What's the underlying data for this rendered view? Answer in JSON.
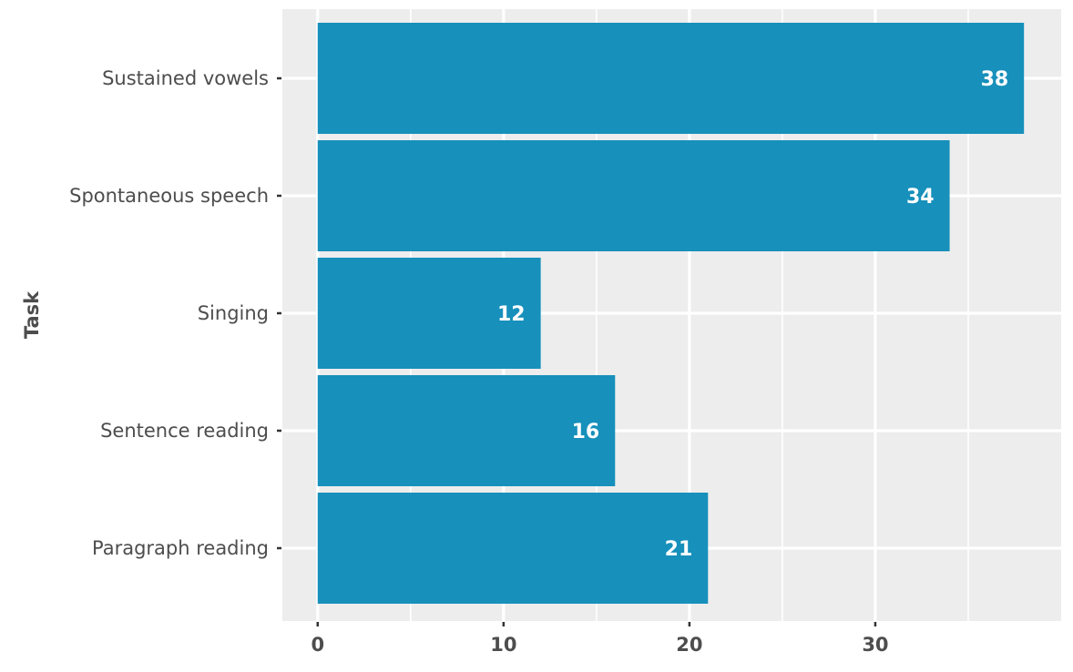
{
  "chart_data": {
    "type": "bar",
    "orientation": "horizontal",
    "categories": [
      "Sustained vowels",
      "Spontaneous speech",
      "Singing",
      "Sentence reading",
      "Paragraph reading"
    ],
    "values": [
      38,
      34,
      12,
      16,
      21
    ],
    "data_labels": [
      "38",
      "34",
      "12",
      "16",
      "21"
    ],
    "title": "",
    "xlabel": "",
    "ylabel": "Task",
    "xlim": [
      -1.9,
      40
    ],
    "x_ticks": [
      0,
      10,
      20,
      30
    ],
    "x_tick_labels": [
      "0",
      "10",
      "20",
      "30"
    ],
    "grid": true,
    "legend": "none",
    "colors": {
      "bar": "#1790bb",
      "panel_background": "#ededed",
      "grid": "#ffffff",
      "text": "#4d4d4d",
      "bar_label": "#ffffff"
    }
  }
}
